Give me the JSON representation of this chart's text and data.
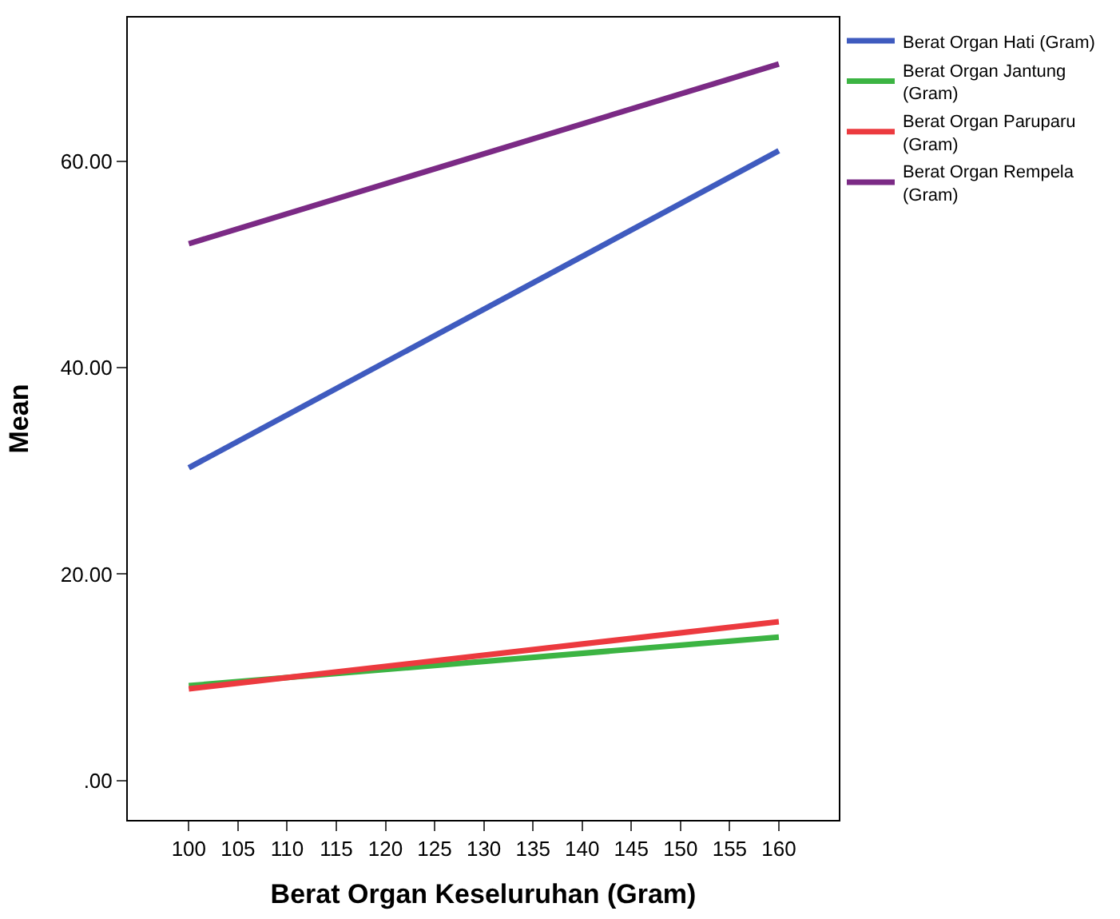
{
  "chart_data": {
    "type": "line",
    "xlabel": "Berat Organ Keseluruhan (Gram)",
    "ylabel": "Mean",
    "x": [
      100,
      160
    ],
    "series": [
      {
        "name": "Berat Organ Hati (Gram)",
        "color": "#3f5bbf",
        "values": [
          30.3,
          61.0
        ]
      },
      {
        "name": "Berat Organ Jantung (Gram)",
        "color": "#3cb443",
        "values": [
          9.2,
          13.9
        ]
      },
      {
        "name": "Berat Organ Paruparu (Gram)",
        "color": "#ec3a3f",
        "values": [
          8.9,
          15.4
        ]
      },
      {
        "name": "Berat Organ Rempela (Gram)",
        "color": "#7b2a85",
        "values": [
          52.0,
          69.4
        ]
      }
    ],
    "xlim": [
      93.8,
      166.1
    ],
    "ylim": [
      -3.8,
      73.9
    ],
    "xticks": [
      100,
      105,
      110,
      115,
      120,
      125,
      130,
      135,
      140,
      145,
      150,
      155,
      160
    ],
    "yticks": [
      {
        "value": 0,
        "label": ".00"
      },
      {
        "value": 20,
        "label": "20.00"
      },
      {
        "value": 40,
        "label": "40.00"
      },
      {
        "value": 60,
        "label": "60.00"
      }
    ],
    "legend": "top right",
    "marker": "none",
    "line_style": "solid"
  }
}
